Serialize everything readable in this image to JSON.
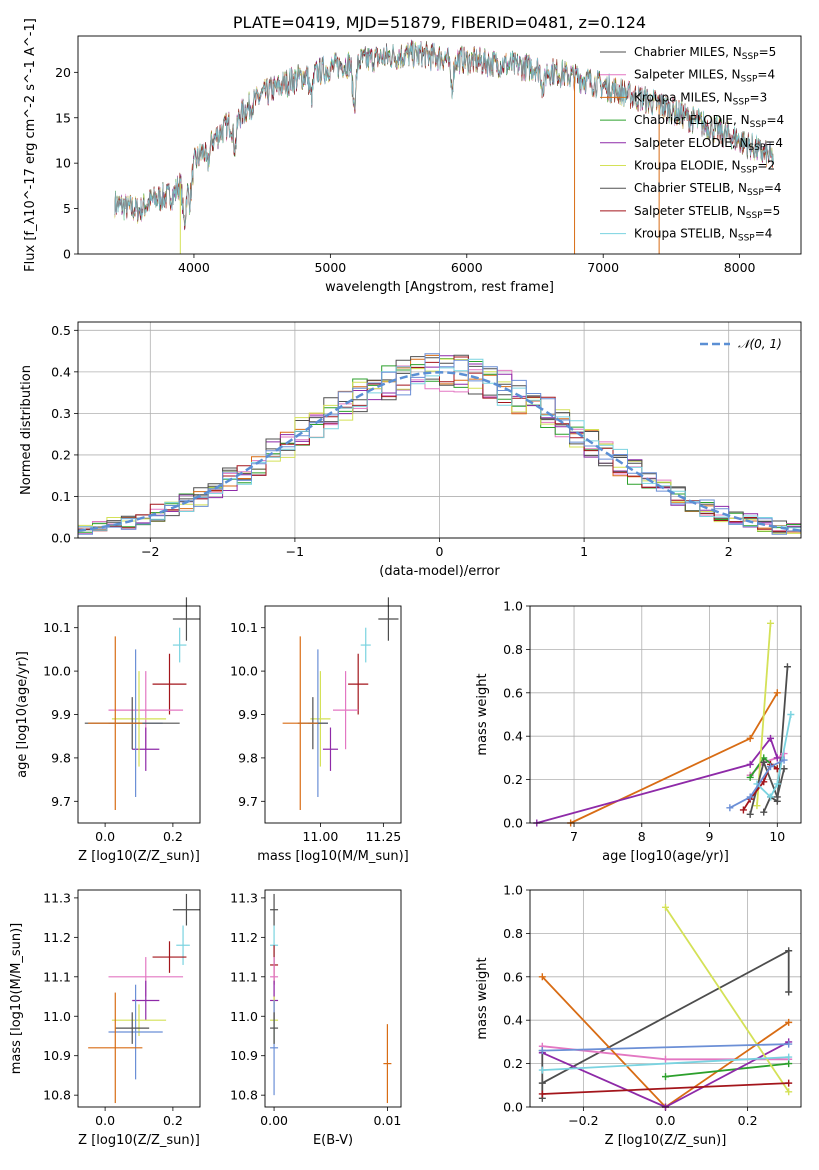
{
  "chart_data": [
    {
      "id": "spectrum",
      "type": "line",
      "title": "PLATE=0419, MJD=51879, FIBERID=0481, z=0.124",
      "xlabel": "wavelength [Angstrom, rest frame]",
      "ylabel": "Flux [f_λ10^-17 erg cm^-2 s^-1 A^-1]",
      "xlim": [
        3150,
        8450
      ],
      "ylim": [
        0,
        24
      ],
      "xticks": [
        4000,
        5000,
        6000,
        7000,
        8000
      ],
      "yticks": [
        0,
        5,
        10,
        15,
        20
      ],
      "legend_position": "upper right",
      "series": [
        {
          "name": "Chabrier MILES, N_SSP=5",
          "color": "#4d4d4d"
        },
        {
          "name": "Salpeter MILES, N_SSP=4",
          "color": "#e377c2"
        },
        {
          "name": "Kroupa MILES, N_SSP=3",
          "color": "#d86c14"
        },
        {
          "name": "Chabrier ELODIE, N_SSP=4",
          "color": "#2ca02c"
        },
        {
          "name": "Salpeter ELODIE, N_SSP=4",
          "color": "#8e2aa8"
        },
        {
          "name": "Kroupa ELODIE, N_SSP=2",
          "color": "#d4e157"
        },
        {
          "name": "Chabrier STELIB, N_SSP=4",
          "color": "#505050"
        },
        {
          "name": "Salpeter STELIB, N_SSP=5",
          "color": "#a3151b"
        },
        {
          "name": "Kroupa STELIB, N_SSP=4",
          "color": "#7ad3e0"
        }
      ],
      "continuum": {
        "x": [
          3420,
          3600,
          3700,
          3850,
          3950,
          4050,
          4200,
          4350,
          4500,
          4700,
          5000,
          5300,
          5600,
          5900,
          6200,
          6500,
          6800,
          7100,
          7400,
          7700,
          8000,
          8250
        ],
        "y": [
          5.5,
          4.8,
          6.0,
          6.5,
          9.0,
          11.0,
          13.5,
          15.5,
          17.5,
          19.0,
          20.5,
          21.5,
          22.0,
          21.5,
          21.0,
          20.5,
          19.5,
          18.0,
          16.5,
          14.5,
          12.5,
          10.5
        ]
      },
      "dips": [
        {
          "x": 3930,
          "depth": 5
        },
        {
          "x": 3970,
          "depth": 3.5
        },
        {
          "x": 4100,
          "depth": 2
        },
        {
          "x": 4300,
          "depth": 3
        },
        {
          "x": 4860,
          "depth": 2.5
        },
        {
          "x": 5175,
          "depth": 4.5
        },
        {
          "x": 5890,
          "depth": 3
        },
        {
          "x": 6560,
          "depth": 2
        }
      ]
    },
    {
      "id": "residuals",
      "type": "area",
      "xlabel": "(data-model)/error",
      "ylabel": "Normed distribution",
      "xlim": [
        -2.5,
        2.5
      ],
      "ylim": [
        0,
        0.52
      ],
      "xticks": [
        -2,
        -1,
        0,
        1,
        2
      ],
      "yticks": [
        0.0,
        0.1,
        0.2,
        0.3,
        0.4,
        0.5
      ],
      "grid": true,
      "legend_position": "upper right",
      "legend": "N(0,1)",
      "bin_width": 0.1,
      "bin_start": -2.5,
      "colors": [
        "#4d4d4d",
        "#e377c2",
        "#d86c14",
        "#2ca02c",
        "#8e2aa8",
        "#d4e157",
        "#505050",
        "#a3151b",
        "#7ad3e0",
        "#6b8fd6"
      ],
      "gauss_color": "#5b8fd4"
    },
    {
      "id": "age_vs_Z",
      "type": "scatter",
      "xlabel": "Z [log10(Z/Z_sun)]",
      "ylabel": "age [log10(age/yr)]",
      "xlim": [
        -0.08,
        0.28
      ],
      "ylim": [
        9.65,
        10.15
      ],
      "xticks": [
        0.0,
        0.2
      ],
      "yticks": [
        9.7,
        9.8,
        9.9,
        10.0,
        10.1
      ],
      "points": [
        {
          "x": 0.24,
          "y": 10.12,
          "xerr": 0.04,
          "yerr": 0.05,
          "color": "#4d4d4d"
        },
        {
          "x": 0.22,
          "y": 10.06,
          "xerr": 0.02,
          "yerr": 0.04,
          "color": "#7ad3e0"
        },
        {
          "x": 0.19,
          "y": 9.97,
          "xerr": 0.05,
          "yerr": 0.07,
          "color": "#a3151b"
        },
        {
          "x": 0.12,
          "y": 9.91,
          "xerr": 0.11,
          "yerr": 0.09,
          "color": "#e377c2"
        },
        {
          "x": 0.12,
          "y": 9.82,
          "xerr": 0.04,
          "yerr": 0.05,
          "color": "#8e2aa8"
        },
        {
          "x": 0.1,
          "y": 9.89,
          "xerr": 0.08,
          "yerr": 0.11,
          "color": "#d4e157"
        },
        {
          "x": 0.09,
          "y": 9.88,
          "xerr": 0.08,
          "yerr": 0.17,
          "color": "#6b8fd6"
        },
        {
          "x": 0.08,
          "y": 9.88,
          "xerr": 0.14,
          "yerr": 0.06,
          "color": "#505050"
        },
        {
          "x": 0.03,
          "y": 9.88,
          "xerr": 0.08,
          "yerr": 0.2,
          "color": "#d86c14"
        }
      ]
    },
    {
      "id": "age_vs_mass",
      "type": "scatter",
      "xlabel": "mass [log10(M/M_sun)]",
      "ylabel": "",
      "xlim": [
        10.78,
        11.32
      ],
      "ylim": [
        9.65,
        10.15
      ],
      "xticks": [
        11.0,
        11.25
      ],
      "yticks": [
        9.7,
        9.8,
        9.9,
        10.0,
        10.1
      ],
      "points": [
        {
          "x": 11.27,
          "y": 10.12,
          "xerr": 0.04,
          "yerr": 0.05,
          "color": "#4d4d4d"
        },
        {
          "x": 11.18,
          "y": 10.06,
          "xerr": 0.02,
          "yerr": 0.04,
          "color": "#7ad3e0"
        },
        {
          "x": 11.15,
          "y": 9.97,
          "xerr": 0.04,
          "yerr": 0.07,
          "color": "#a3151b"
        },
        {
          "x": 11.1,
          "y": 9.91,
          "xerr": 0.05,
          "yerr": 0.09,
          "color": "#e377c2"
        },
        {
          "x": 11.04,
          "y": 9.82,
          "xerr": 0.03,
          "yerr": 0.05,
          "color": "#8e2aa8"
        },
        {
          "x": 11.0,
          "y": 9.89,
          "xerr": 0.04,
          "yerr": 0.11,
          "color": "#d4e157"
        },
        {
          "x": 10.99,
          "y": 9.88,
          "xerr": 0.04,
          "yerr": 0.17,
          "color": "#6b8fd6"
        },
        {
          "x": 10.97,
          "y": 9.88,
          "xerr": 0.06,
          "yerr": 0.06,
          "color": "#505050"
        },
        {
          "x": 10.92,
          "y": 9.88,
          "xerr": 0.07,
          "yerr": 0.2,
          "color": "#d86c14"
        }
      ]
    },
    {
      "id": "weight_vs_age",
      "type": "line",
      "xlabel": "age [log10(age/yr)]",
      "ylabel": "mass weight",
      "xlim": [
        6.35,
        10.35
      ],
      "ylim": [
        0,
        1.0
      ],
      "xticks": [
        7,
        8,
        9,
        10
      ],
      "yticks": [
        0.0,
        0.2,
        0.4,
        0.6,
        0.8,
        1.0
      ],
      "grid": true,
      "series": [
        {
          "color": "#4d4d4d",
          "x": [
            9.8,
            9.9,
            10.0,
            10.15
          ],
          "y": [
            0.05,
            0.12,
            0.1,
            0.72
          ]
        },
        {
          "color": "#e377c2",
          "x": [
            9.6,
            9.8,
            10.0,
            10.1
          ],
          "y": [
            0.22,
            0.28,
            0.3,
            0.32
          ]
        },
        {
          "color": "#d86c14",
          "x": [
            6.95,
            9.6,
            10.0
          ],
          "y": [
            0.0,
            0.39,
            0.6
          ]
        },
        {
          "color": "#2ca02c",
          "x": [
            9.6,
            9.8,
            10.0
          ],
          "y": [
            0.21,
            0.3,
            0.25
          ]
        },
        {
          "color": "#8e2aa8",
          "x": [
            6.45,
            9.6,
            9.9,
            10.0
          ],
          "y": [
            0.0,
            0.27,
            0.39,
            0.3
          ]
        },
        {
          "color": "#d4e157",
          "x": [
            9.7,
            9.9
          ],
          "y": [
            0.08,
            0.92
          ]
        },
        {
          "color": "#505050",
          "x": [
            9.6,
            9.8,
            10.0,
            10.1
          ],
          "y": [
            0.04,
            0.28,
            0.12,
            0.25
          ]
        },
        {
          "color": "#a3151b",
          "x": [
            9.5,
            9.6,
            9.8,
            9.9,
            10.0
          ],
          "y": [
            0.06,
            0.11,
            0.19,
            0.27,
            0.25
          ]
        },
        {
          "color": "#7ad3e0",
          "x": [
            9.7,
            9.9,
            10.0,
            10.2
          ],
          "y": [
            0.18,
            0.12,
            0.18,
            0.5
          ]
        },
        {
          "color": "#6b8fd6",
          "x": [
            9.3,
            9.6,
            9.9,
            10.1
          ],
          "y": [
            0.07,
            0.12,
            0.26,
            0.29
          ]
        }
      ]
    },
    {
      "id": "mass_vs_Z",
      "type": "scatter",
      "xlabel": "Z [log10(Z/Z_sun)]",
      "ylabel": "mass [log10(M/M_sun)]",
      "xlim": [
        -0.08,
        0.28
      ],
      "ylim": [
        10.77,
        11.32
      ],
      "xticks": [
        0.0,
        0.2
      ],
      "yticks": [
        10.8,
        10.9,
        11.0,
        11.1,
        11.2,
        11.3
      ],
      "points": [
        {
          "x": 0.24,
          "y": 11.27,
          "xerr": 0.04,
          "yerr": 0.04,
          "color": "#4d4d4d"
        },
        {
          "x": 0.23,
          "y": 11.18,
          "xerr": 0.02,
          "yerr": 0.05,
          "color": "#7ad3e0"
        },
        {
          "x": 0.19,
          "y": 11.15,
          "xerr": 0.05,
          "yerr": 0.04,
          "color": "#a3151b"
        },
        {
          "x": 0.12,
          "y": 11.1,
          "xerr": 0.11,
          "yerr": 0.05,
          "color": "#e377c2"
        },
        {
          "x": 0.12,
          "y": 11.04,
          "xerr": 0.04,
          "yerr": 0.05,
          "color": "#8e2aa8"
        },
        {
          "x": 0.1,
          "y": 10.99,
          "xerr": 0.08,
          "yerr": 0.04,
          "color": "#d4e157"
        },
        {
          "x": 0.09,
          "y": 10.96,
          "xerr": 0.08,
          "yerr": 0.12,
          "color": "#6b8fd6"
        },
        {
          "x": 0.08,
          "y": 10.97,
          "xerr": 0.05,
          "yerr": 0.04,
          "color": "#505050"
        },
        {
          "x": 0.03,
          "y": 10.92,
          "xerr": 0.08,
          "yerr": 0.14,
          "color": "#d86c14"
        }
      ]
    },
    {
      "id": "mass_vs_ebv",
      "type": "scatter",
      "xlabel": "E(B-V)",
      "ylabel": "",
      "xlim": [
        -0.0008,
        0.0112
      ],
      "ylim": [
        10.77,
        11.32
      ],
      "xticks": [
        0.0,
        0.01
      ],
      "yticks": [
        10.8,
        10.9,
        11.0,
        11.1,
        11.2,
        11.3
      ],
      "points": [
        {
          "x": 0.0,
          "y": 11.27,
          "yerr": 0.04,
          "color": "#4d4d4d"
        },
        {
          "x": 0.0,
          "y": 11.18,
          "yerr": 0.05,
          "color": "#7ad3e0"
        },
        {
          "x": 0.0,
          "y": 11.13,
          "yerr": 0.05,
          "color": "#a3151b"
        },
        {
          "x": 0.0,
          "y": 11.1,
          "yerr": 0.05,
          "color": "#e377c2"
        },
        {
          "x": 0.0,
          "y": 11.04,
          "yerr": 0.05,
          "color": "#8e2aa8"
        },
        {
          "x": 0.0,
          "y": 10.99,
          "yerr": 0.06,
          "color": "#d4e157"
        },
        {
          "x": 0.0,
          "y": 10.92,
          "yerr": 0.12,
          "color": "#6b8fd6"
        },
        {
          "x": 0.0,
          "y": 10.97,
          "yerr": 0.04,
          "color": "#505050"
        },
        {
          "x": 0.01,
          "y": 10.88,
          "yerr": 0.1,
          "color": "#d86c14"
        }
      ]
    },
    {
      "id": "weight_vs_Z",
      "type": "line",
      "xlabel": "Z [log10(Z/Z_sun)]",
      "ylabel": "mass weight",
      "xlim": [
        -0.33,
        0.33
      ],
      "ylim": [
        0,
        1.0
      ],
      "xticks": [
        -0.2,
        0.0,
        0.2
      ],
      "yticks": [
        0.0,
        0.2,
        0.4,
        0.6,
        0.8,
        1.0
      ],
      "grid": true,
      "series": [
        {
          "color": "#4d4d4d",
          "x": [
            -0.3,
            0.3,
            0.3
          ],
          "y": [
            0.11,
            0.72,
            0.53
          ]
        },
        {
          "color": "#e377c2",
          "x": [
            -0.3,
            0.0,
            0.3
          ],
          "y": [
            0.28,
            0.22,
            0.22
          ]
        },
        {
          "color": "#d86c14",
          "x": [
            -0.3,
            0.0,
            0.3
          ],
          "y": [
            0.6,
            0.0,
            0.39
          ]
        },
        {
          "color": "#2ca02c",
          "x": [
            0.0,
            0.3
          ],
          "y": [
            0.14,
            0.2
          ]
        },
        {
          "color": "#8e2aa8",
          "x": [
            -0.3,
            0.0,
            0.3
          ],
          "y": [
            0.25,
            0.0,
            0.3
          ]
        },
        {
          "color": "#d4e157",
          "x": [
            0.0,
            0.3
          ],
          "y": [
            0.92,
            0.07
          ]
        },
        {
          "color": "#505050",
          "x": [
            -0.3,
            -0.3
          ],
          "y": [
            0.04,
            0.26
          ]
        },
        {
          "color": "#a3151b",
          "x": [
            -0.3,
            0.3
          ],
          "y": [
            0.06,
            0.11
          ]
        },
        {
          "color": "#7ad3e0",
          "x": [
            -0.3,
            0.3
          ],
          "y": [
            0.17,
            0.23
          ]
        },
        {
          "color": "#6b8fd6",
          "x": [
            -0.3,
            0.3
          ],
          "y": [
            0.26,
            0.29
          ]
        }
      ]
    }
  ]
}
